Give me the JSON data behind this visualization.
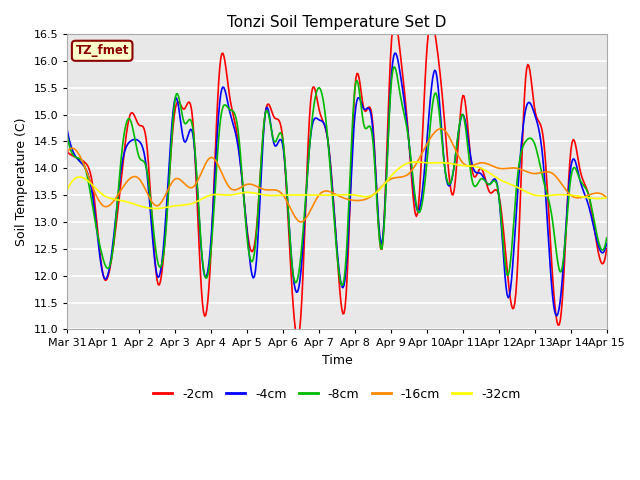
{
  "title": "Tonzi Soil Temperature Set D",
  "xlabel": "Time",
  "ylabel": "Soil Temperature (C)",
  "ylim": [
    11.0,
    16.5
  ],
  "fig_facecolor": "#ffffff",
  "plot_facecolor": "#e8e8e8",
  "legend_label": "TZ_fmet",
  "series_colors": {
    "-2cm": "#ff0000",
    "-4cm": "#0000ff",
    "-8cm": "#00bb00",
    "-16cm": "#ff8800",
    "-32cm": "#ffff00"
  },
  "legend_colors": [
    "#ff0000",
    "#0000ff",
    "#00bb00",
    "#ff8800",
    "#ffff00"
  ],
  "legend_labels": [
    "-2cm",
    "-4cm",
    "-8cm",
    "-16cm",
    "-32cm"
  ],
  "x_tick_labels": [
    "Mar 31",
    "Apr 1",
    "Apr 2",
    "Apr 3",
    "Apr 4",
    "Apr 5",
    "Apr 6",
    "Apr 7",
    "Apr 8",
    "Apr 9",
    "Apr 10",
    "Apr 11",
    "Apr 12",
    "Apr 13",
    "Apr 14",
    "Apr 15"
  ],
  "x_ticks": [
    0,
    1,
    2,
    3,
    4,
    5,
    6,
    7,
    8,
    9,
    10,
    11,
    12,
    13,
    14,
    15
  ],
  "t_2cm_x": [
    0.0,
    0.25,
    0.5,
    0.7,
    1.0,
    1.25,
    1.5,
    1.75,
    2.0,
    2.2,
    2.5,
    2.75,
    3.0,
    3.25,
    3.5,
    3.75,
    4.0,
    4.25,
    4.5,
    4.75,
    5.0,
    5.25,
    5.5,
    5.75,
    6.0,
    6.25,
    6.5,
    6.75,
    7.0,
    7.25,
    7.5,
    7.75,
    8.0,
    8.25,
    8.5,
    8.75,
    9.0,
    9.25,
    9.5,
    9.75,
    10.0,
    10.25,
    10.5,
    10.75,
    11.0,
    11.25,
    11.5,
    11.75,
    12.0,
    12.25,
    12.5,
    12.75,
    13.0,
    13.25,
    13.5,
    13.75,
    14.0,
    14.25,
    14.5,
    14.75,
    15.0
  ],
  "t_2cm_y": [
    14.3,
    14.2,
    14.1,
    13.7,
    12.0,
    12.4,
    13.8,
    15.0,
    14.8,
    14.5,
    11.9,
    13.0,
    15.1,
    15.1,
    14.8,
    11.55,
    12.5,
    15.95,
    15.4,
    14.5,
    12.85,
    12.8,
    15.0,
    14.95,
    14.5,
    11.75,
    11.3,
    15.1,
    15.1,
    14.5,
    12.45,
    11.6,
    15.5,
    15.1,
    14.8,
    12.5,
    16.2,
    16.2,
    14.5,
    13.2,
    16.2,
    16.4,
    14.8,
    13.55,
    15.35,
    14.0,
    14.0,
    13.55,
    13.5,
    12.0,
    11.9,
    15.7,
    15.1,
    14.5,
    11.95,
    11.4,
    14.3,
    14.0,
    13.5,
    12.5,
    12.5
  ],
  "t_4cm_x": [
    0.0,
    0.25,
    0.5,
    0.7,
    1.0,
    1.25,
    1.5,
    1.75,
    2.0,
    2.2,
    2.5,
    2.75,
    3.0,
    3.25,
    3.5,
    3.75,
    4.0,
    4.25,
    4.5,
    4.75,
    5.0,
    5.25,
    5.5,
    5.75,
    6.0,
    6.25,
    6.5,
    6.75,
    7.0,
    7.25,
    7.5,
    7.75,
    8.0,
    8.25,
    8.5,
    8.75,
    9.0,
    9.25,
    9.5,
    9.75,
    10.0,
    10.25,
    10.5,
    10.75,
    11.0,
    11.25,
    11.5,
    11.75,
    12.0,
    12.25,
    12.5,
    12.75,
    13.0,
    13.25,
    13.5,
    13.75,
    14.0,
    14.25,
    14.5,
    14.75,
    15.0
  ],
  "t_4cm_y": [
    14.7,
    14.2,
    14.0,
    13.5,
    12.0,
    12.5,
    14.0,
    14.5,
    14.5,
    14.0,
    12.0,
    13.2,
    15.3,
    14.5,
    14.6,
    12.3,
    12.7,
    15.3,
    15.1,
    14.4,
    12.8,
    12.2,
    15.0,
    14.45,
    14.4,
    12.2,
    12.1,
    14.5,
    14.9,
    14.5,
    12.5,
    12.1,
    15.0,
    15.1,
    14.7,
    12.6,
    15.6,
    15.8,
    14.5,
    13.2,
    14.5,
    15.8,
    14.0,
    14.0,
    15.0,
    14.1,
    13.9,
    13.7,
    13.5,
    11.6,
    13.3,
    15.1,
    15.0,
    14.0,
    11.6,
    11.8,
    14.0,
    13.8,
    13.3,
    12.6,
    12.6
  ],
  "t_8cm_x": [
    0.0,
    0.25,
    0.5,
    0.7,
    1.0,
    1.25,
    1.5,
    1.75,
    2.0,
    2.2,
    2.5,
    2.75,
    3.0,
    3.25,
    3.5,
    3.75,
    4.0,
    4.25,
    4.5,
    4.75,
    5.0,
    5.25,
    5.5,
    5.75,
    6.0,
    6.25,
    6.5,
    6.75,
    7.0,
    7.25,
    7.5,
    7.75,
    8.0,
    8.25,
    8.5,
    8.75,
    9.0,
    9.25,
    9.5,
    9.75,
    10.0,
    10.25,
    10.5,
    10.75,
    11.0,
    11.25,
    11.5,
    11.75,
    12.0,
    12.25,
    12.5,
    12.75,
    13.0,
    13.25,
    13.5,
    13.75,
    14.0,
    14.25,
    14.5,
    14.75,
    15.0
  ],
  "t_8cm_y": [
    14.6,
    14.2,
    14.0,
    13.3,
    12.3,
    12.4,
    14.2,
    14.9,
    14.2,
    14.0,
    12.3,
    12.9,
    15.3,
    14.85,
    14.7,
    12.35,
    12.5,
    14.85,
    15.1,
    14.7,
    12.7,
    12.7,
    15.0,
    14.5,
    14.5,
    12.2,
    12.4,
    14.5,
    15.5,
    14.5,
    12.4,
    12.3,
    15.5,
    14.8,
    14.5,
    12.5,
    15.5,
    15.4,
    14.5,
    13.2,
    14.1,
    15.4,
    14.0,
    14.0,
    15.0,
    13.8,
    13.8,
    13.7,
    13.5,
    12.0,
    13.7,
    14.5,
    14.45,
    13.75,
    13.0,
    12.1,
    13.8,
    13.8,
    13.5,
    12.7,
    12.7
  ],
  "t_16cm_x": [
    0.0,
    0.5,
    1.0,
    1.5,
    2.0,
    2.5,
    3.0,
    3.5,
    4.0,
    4.5,
    5.0,
    5.5,
    6.0,
    6.5,
    7.0,
    7.5,
    8.0,
    8.5,
    9.0,
    9.5,
    10.0,
    10.5,
    11.0,
    11.5,
    12.0,
    12.5,
    13.0,
    13.5,
    14.0,
    14.5,
    15.0
  ],
  "t_16cm_y": [
    14.3,
    14.0,
    13.3,
    13.6,
    13.8,
    13.3,
    13.8,
    13.65,
    14.2,
    13.65,
    13.7,
    13.6,
    13.5,
    13.0,
    13.5,
    13.5,
    13.4,
    13.5,
    13.8,
    13.9,
    14.45,
    14.7,
    14.1,
    14.1,
    14.0,
    14.0,
    13.9,
    13.9,
    13.5,
    13.5,
    13.45
  ],
  "t_32cm_x": [
    0.0,
    0.5,
    1.0,
    1.5,
    2.0,
    2.5,
    3.0,
    3.5,
    4.0,
    4.5,
    5.0,
    5.5,
    6.0,
    6.5,
    7.0,
    7.5,
    8.0,
    8.5,
    9.0,
    9.5,
    10.0,
    10.5,
    11.0,
    11.5,
    12.0,
    12.5,
    13.0,
    13.5,
    14.0,
    14.5,
    15.0
  ],
  "t_32cm_y": [
    13.6,
    13.8,
    13.5,
    13.4,
    13.3,
    13.25,
    13.3,
    13.35,
    13.5,
    13.5,
    13.55,
    13.5,
    13.5,
    13.5,
    13.5,
    13.5,
    13.5,
    13.5,
    13.85,
    14.1,
    14.1,
    14.1,
    14.05,
    14.0,
    13.8,
    13.65,
    13.5,
    13.5,
    13.5,
    13.45,
    13.45
  ]
}
